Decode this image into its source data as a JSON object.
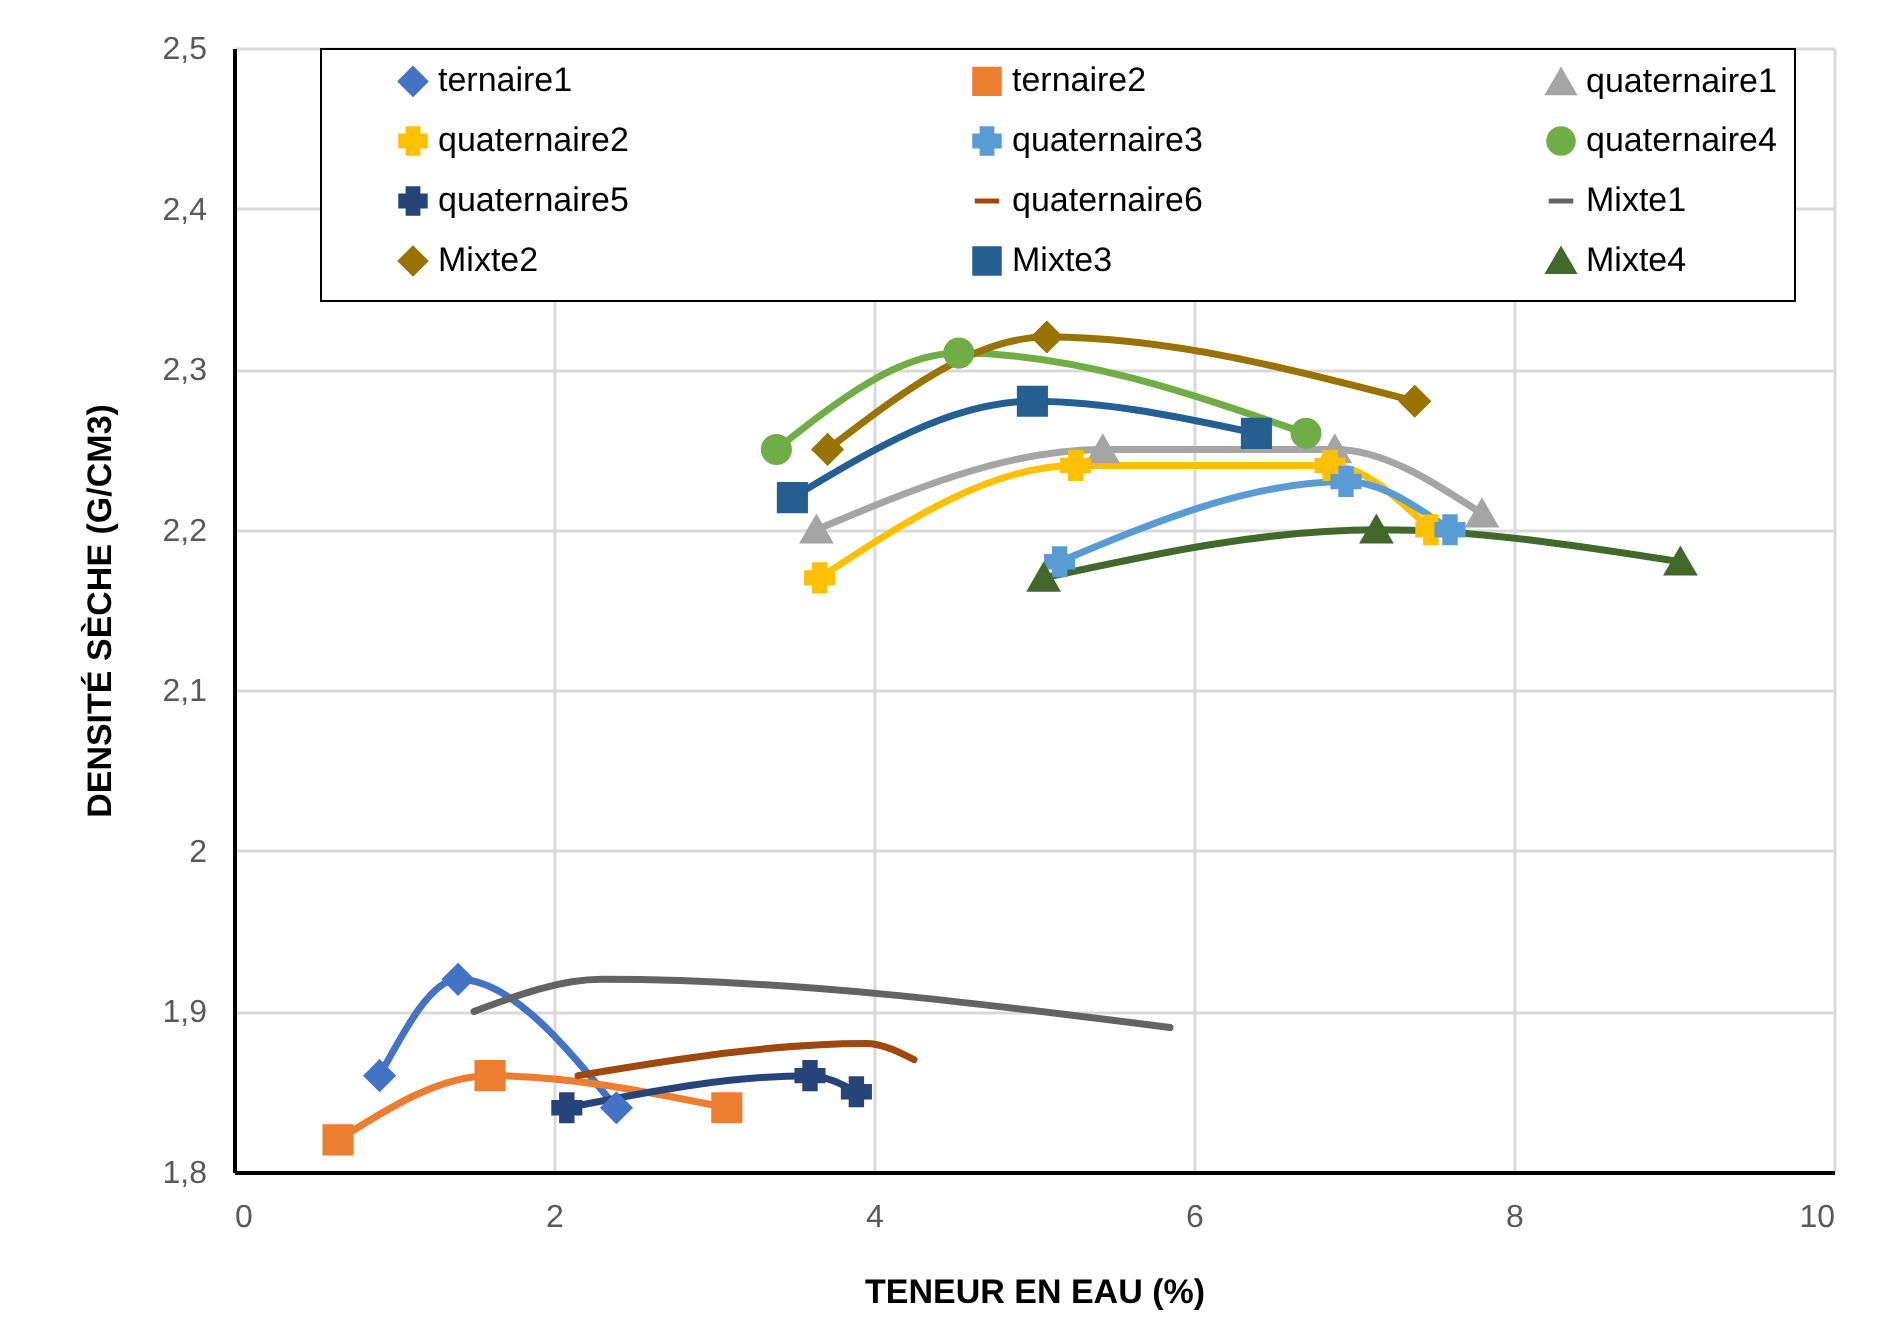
{
  "chart_data": {
    "type": "line",
    "xlabel": "TENEUR EN EAU (%)",
    "ylabel": "DENSITÉ  SÈCHE (G/CM3)",
    "xlim": [
      0,
      10
    ],
    "xticks": [
      0,
      2,
      4,
      6,
      8,
      10
    ],
    "ylim": [
      1.8,
      2.5
    ],
    "yticks": [
      {
        "value": 1.8,
        "label": "1,8"
      },
      {
        "value": 1.9,
        "label": "1,9"
      },
      2,
      {
        "value": 2.1,
        "label": "2,1"
      },
      {
        "value": 2.2,
        "label": "2,2"
      },
      {
        "value": 2.3,
        "label": "2,3"
      },
      {
        "value": 2.4,
        "label": "2,4"
      },
      {
        "value": 2.5,
        "label": "2,5"
      }
    ],
    "grid": true,
    "legend": "top",
    "series": [
      {
        "name": "ternaire1",
        "color": "#4472c4",
        "marker": "diamond",
        "x": [
          0.91,
          1.4,
          2.39
        ],
        "values": [
          1.86,
          1.92,
          1.84
        ]
      },
      {
        "name": "ternaire2",
        "color": "#ed7d31",
        "marker": "square",
        "x": [
          0.65,
          1.6,
          3.08
        ],
        "values": [
          1.82,
          1.86,
          1.84
        ]
      },
      {
        "name": "quaternaire1",
        "color": "#a5a5a5",
        "marker": "triangle",
        "x": [
          3.64,
          5.43,
          6.88,
          7.8
        ],
        "values": [
          2.2,
          2.25,
          2.25,
          2.21
        ]
      },
      {
        "name": "quaternaire2",
        "color": "#ffc000",
        "marker": "cross",
        "x": [
          3.66,
          5.26,
          6.85,
          7.48
        ],
        "values": [
          2.17,
          2.24,
          2.24,
          2.2
        ]
      },
      {
        "name": "quaternaire3",
        "color": "#5b9bd5",
        "marker": "cross",
        "x": [
          5.16,
          6.95,
          7.6
        ],
        "values": [
          2.18,
          2.23,
          2.2
        ]
      },
      {
        "name": "quaternaire4",
        "color": "#70ad47",
        "marker": "circle",
        "x": [
          3.39,
          4.53,
          6.7
        ],
        "values": [
          2.25,
          2.31,
          2.26
        ]
      },
      {
        "name": "quaternaire5",
        "color": "#264478",
        "marker": "cross",
        "x": [
          2.08,
          3.6,
          3.89
        ],
        "values": [
          1.84,
          1.86,
          1.85
        ]
      },
      {
        "name": "quaternaire6",
        "color": "#9e480e",
        "marker": "none",
        "x": [
          2.15,
          3.95,
          4.25
        ],
        "values": [
          1.86,
          1.88,
          1.87
        ]
      },
      {
        "name": "Mixte1",
        "color": "#636363",
        "marker": "none",
        "x": [
          1.5,
          2.3,
          5.85
        ],
        "values": [
          1.9,
          1.92,
          1.89
        ]
      },
      {
        "name": "Mixte2",
        "color": "#997300",
        "marker": "diamond",
        "x": [
          3.71,
          5.08,
          7.38
        ],
        "values": [
          2.25,
          2.32,
          2.28
        ]
      },
      {
        "name": "Mixte3",
        "color": "#255e91",
        "marker": "square",
        "x": [
          3.49,
          4.99,
          6.39
        ],
        "values": [
          2.22,
          2.28,
          2.26
        ]
      },
      {
        "name": "Mixte4",
        "color": "#43682b",
        "marker": "triangle",
        "x": [
          5.06,
          7.14,
          9.04
        ],
        "values": [
          2.17,
          2.2,
          2.18
        ]
      }
    ]
  }
}
